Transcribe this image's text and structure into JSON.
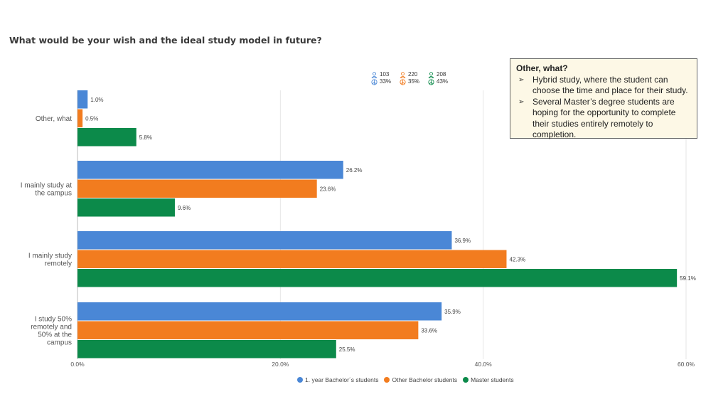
{
  "title": "What would be your wish and the ideal study model in future?",
  "callout": {
    "title": "Other, what?",
    "items": [
      "Hybrid study, where the student can choose the time and place for their study.",
      "Several Master’s degree students are hoping for the opportunity to complete their studies entirely remotely to completion."
    ]
  },
  "group_counts": [
    {
      "count": "103",
      "share": "33%",
      "color": "#4a87d6"
    },
    {
      "count": "220",
      "share": "35%",
      "color": "#f27c1f"
    },
    {
      "count": "208",
      "share": "43%",
      "color": "#0c8a4a"
    }
  ],
  "chart_data": {
    "type": "bar",
    "orientation": "horizontal",
    "title": "What would be your wish and the ideal study model in future?",
    "categories": [
      "Other, what",
      "I mainly study at the campus",
      "I mainly study remotely",
      "I study 50% remotely and 50% at the campus"
    ],
    "category_lines": [
      [
        "Other, what"
      ],
      [
        "I mainly study at",
        "the campus"
      ],
      [
        "I mainly study",
        "remotely"
      ],
      [
        "I study 50%",
        "remotely and",
        "50% at the",
        "campus"
      ]
    ],
    "series": [
      {
        "name": "1. year Bachelor´s students",
        "color": "#4a87d6",
        "values": [
          1.0,
          26.2,
          36.9,
          35.9
        ]
      },
      {
        "name": "Other Bachelor students",
        "color": "#f27c1f",
        "values": [
          0.5,
          23.6,
          42.3,
          33.6
        ]
      },
      {
        "name": "Master students",
        "color": "#0c8a4a",
        "values": [
          5.8,
          9.6,
          59.1,
          25.5
        ]
      }
    ],
    "xlim": [
      0,
      60
    ],
    "xticks": [
      0,
      20,
      40,
      60
    ],
    "xtick_labels": [
      "0.0%",
      "20.0%",
      "40.0%",
      "60.0%"
    ],
    "value_suffix": "%",
    "grid": "vertical",
    "legend": "bottom"
  }
}
